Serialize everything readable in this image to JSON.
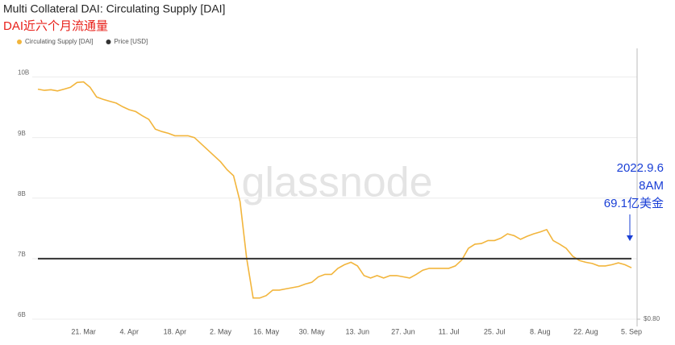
{
  "chart_data": {
    "type": "line",
    "title": "Multi Collateral DAI: Circulating Supply [DAI]",
    "subtitle": "DAI近六个月流通量",
    "watermark": "glassnode",
    "annotation": [
      "2022.9.6",
      "8AM",
      "69.1亿美金"
    ],
    "categories": [
      null,
      null,
      null,
      null,
      null,
      null,
      null,
      "21. Mar",
      null,
      null,
      null,
      null,
      null,
      null,
      "4. Apr",
      null,
      null,
      null,
      null,
      null,
      null,
      "18. Apr",
      null,
      null,
      null,
      null,
      null,
      null,
      "2. May",
      null,
      null,
      null,
      null,
      null,
      null,
      "16. May",
      null,
      null,
      null,
      null,
      null,
      null,
      "30. May",
      null,
      null,
      null,
      null,
      null,
      null,
      "13. Jun",
      null,
      null,
      null,
      null,
      null,
      null,
      "27. Jun",
      null,
      null,
      null,
      null,
      null,
      null,
      "11. Jul",
      null,
      null,
      null,
      null,
      null,
      null,
      "25. Jul",
      null,
      null,
      null,
      null,
      null,
      null,
      "8. Aug",
      null,
      null,
      null,
      null,
      null,
      null,
      "22. Aug",
      null,
      null,
      null,
      null,
      null,
      null,
      "5. Sep"
    ],
    "series": [
      {
        "name": "Circulating Supply [DAI]",
        "color": "#f2b53c",
        "values": [
          9800000000,
          9780000000,
          9790000000,
          9770000000,
          9800000000,
          9830000000,
          9910000000,
          9920000000,
          9830000000,
          9670000000,
          9630000000,
          9600000000,
          9570000000,
          9510000000,
          9460000000,
          9430000000,
          9360000000,
          9300000000,
          9140000000,
          9100000000,
          9070000000,
          9030000000,
          9030000000,
          9030000000,
          9000000000,
          8900000000,
          8800000000,
          8700000000,
          8600000000,
          8470000000,
          8370000000,
          7940000000,
          7010000000,
          6350000000,
          6350000000,
          6390000000,
          6480000000,
          6480000000,
          6500000000,
          6520000000,
          6540000000,
          6580000000,
          6610000000,
          6700000000,
          6740000000,
          6740000000,
          6840000000,
          6900000000,
          6940000000,
          6880000000,
          6720000000,
          6680000000,
          6720000000,
          6680000000,
          6720000000,
          6720000000,
          6700000000,
          6680000000,
          6740000000,
          6810000000,
          6840000000,
          6840000000,
          6840000000,
          6840000000,
          6880000000,
          6980000000,
          7170000000,
          7240000000,
          7250000000,
          7300000000,
          7300000000,
          7340000000,
          7410000000,
          7380000000,
          7320000000,
          7370000000,
          7410000000,
          7440000000,
          7480000000,
          7300000000,
          7240000000,
          7170000000,
          7040000000,
          6970000000,
          6940000000,
          6920000000,
          6880000000,
          6880000000,
          6900000000,
          6930000000,
          6900000000,
          6850000000
        ]
      },
      {
        "name": "Price [USD]",
        "color": "#333333",
        "axis": "y2",
        "values": [
          1,
          1,
          1,
          1,
          1,
          1,
          1,
          1,
          1,
          1,
          1,
          1,
          1,
          1,
          1,
          1,
          1,
          1,
          1,
          1,
          1,
          1,
          1,
          1,
          1,
          1,
          1,
          1,
          1,
          1,
          1,
          1,
          1,
          1,
          1,
          1,
          1,
          1,
          1,
          1,
          1,
          1,
          1,
          1,
          1,
          1,
          1,
          1,
          1,
          1,
          1,
          1,
          1,
          1,
          1,
          1,
          1,
          1,
          1,
          1,
          1,
          1,
          1,
          1,
          1,
          1,
          1,
          1,
          1,
          1,
          1,
          1,
          1,
          1,
          1,
          1,
          1,
          1,
          1,
          1,
          1,
          1,
          1,
          1,
          1,
          1,
          1,
          1,
          1,
          1,
          1,
          1
        ]
      }
    ],
    "ylim": [
      6000000000,
      10500000000
    ],
    "yticks": [
      {
        "value": 6000000000,
        "label": "6B"
      },
      {
        "value": 7000000000,
        "label": "7B"
      },
      {
        "value": 8000000000,
        "label": "8B"
      },
      {
        "value": 9000000000,
        "label": "9B"
      },
      {
        "value": 10000000000,
        "label": "10B"
      }
    ],
    "y2lim": [
      0.8,
      1.7
    ],
    "y2ticks": [
      {
        "value": 0.8,
        "label": "$0.80"
      }
    ],
    "grid": true,
    "legend": "top-left"
  }
}
